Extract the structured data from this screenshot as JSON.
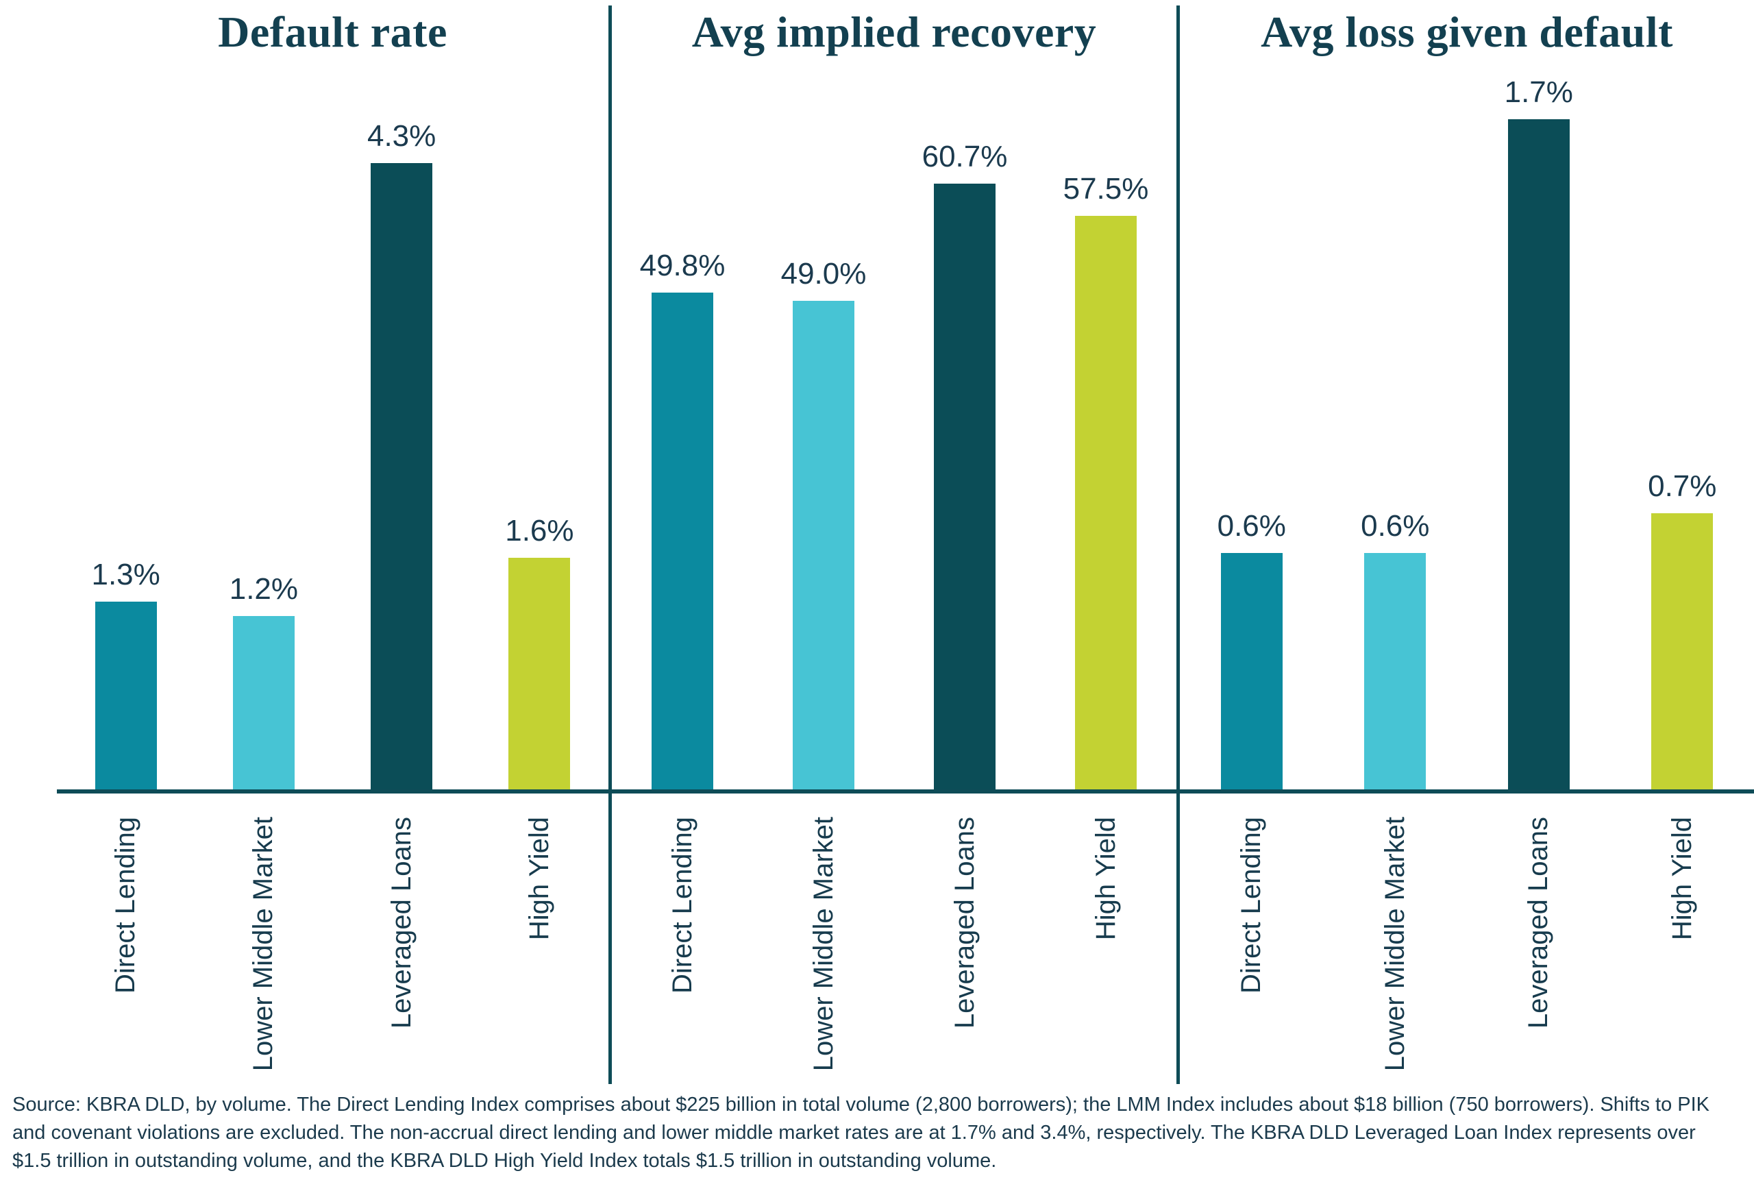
{
  "chart_data": [
    {
      "type": "bar",
      "title": "Default rate",
      "categories": [
        "Direct Lending",
        "Lower Middle Market",
        "Leveraged Loans",
        "High Yield"
      ],
      "values": [
        1.3,
        1.2,
        4.3,
        1.6
      ],
      "data_labels": [
        "1.3%",
        "1.2%",
        "4.3%",
        "1.6%"
      ],
      "ylabel": "",
      "ylim": [
        0,
        4.9
      ],
      "grid": false,
      "legend": "none"
    },
    {
      "type": "bar",
      "title": "Avg implied recovery",
      "categories": [
        "Direct Lending",
        "Lower Middle Market",
        "Leveraged Loans",
        "High Yield"
      ],
      "values": [
        49.8,
        49.0,
        60.7,
        57.5
      ],
      "data_labels": [
        "49.8%",
        "49.0%",
        "60.7%",
        "57.5%"
      ],
      "ylabel": "",
      "ylim": [
        0,
        71.5
      ],
      "grid": false,
      "legend": "none"
    },
    {
      "type": "bar",
      "title": "Avg loss given default",
      "categories": [
        "Direct Lending",
        "Lower Middle Market",
        "Leveraged Loans",
        "High Yield"
      ],
      "values": [
        0.6,
        0.6,
        1.7,
        0.7
      ],
      "data_labels": [
        "0.6%",
        "0.6%",
        "1.7%",
        "0.7%"
      ],
      "ylabel": "",
      "ylim": [
        0,
        1.8
      ],
      "grid": false,
      "legend": "none"
    }
  ],
  "colors": {
    "bar_colors": [
      "#0b8a9f",
      "#47c4d4",
      "#0b4d57",
      "#c3d233"
    ],
    "axis_line": "#0e4c57",
    "divider_line": "#0e4c57",
    "title_text": "#134050",
    "value_text": "#1b3a4e",
    "category_text": "#173b4d",
    "note_text": "#1b3a4c"
  },
  "source_note": "Source: KBRA DLD, by volume. The Direct Lending Index comprises about $225 billion in total volume (2,800 borrowers); the LMM Index includes about $18 billion (750 borrowers). Shifts to PIK and covenant violations are excluded. The non-accrual direct lending and lower middle market rates are at 1.7% and 3.4%, respectively. The KBRA DLD Leveraged Loan Index represents over $1.5 trillion in outstanding volume, and the KBRA DLD High Yield Index totals $1.5 trillion in outstanding volume."
}
